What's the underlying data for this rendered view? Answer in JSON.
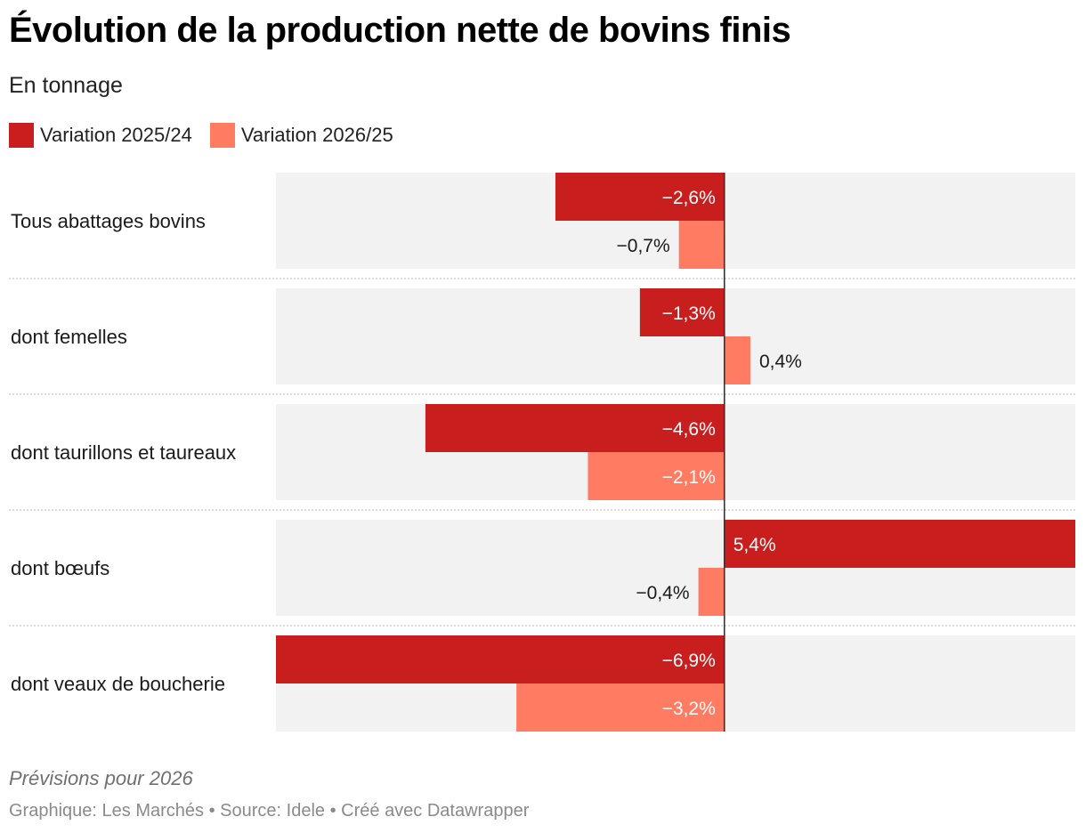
{
  "title": "Évolution de la production nette de bovins finis",
  "subtitle": "En tonnage",
  "notes": "Prévisions pour 2026",
  "credits": {
    "graphic_label": "Graphique:",
    "graphic_value": "Les Marchés",
    "source_label": "Source:",
    "source_value": "Idele",
    "tool": "Créé avec Datawrapper",
    "separator": " • "
  },
  "colors": {
    "series_2025": "#c81e1e",
    "series_2026": "#ff7b62",
    "row_background": "#f2f2f2",
    "zero_line": "#333333"
  },
  "chart_data": {
    "type": "bar",
    "orientation": "horizontal",
    "categories": [
      "Tous abattages bovins",
      "dont femelles",
      "dont taurillons et taureaux",
      "dont bœufs",
      "dont veaux de boucherie"
    ],
    "series": [
      {
        "name": "Variation 2025/24",
        "values": [
          -2.6,
          -1.3,
          -4.6,
          5.4,
          -6.9
        ],
        "labels": [
          "−2,6%",
          "−1,3%",
          "−4,6%",
          "5,4%",
          "−6,9%"
        ]
      },
      {
        "name": "Variation 2026/25",
        "values": [
          -0.7,
          0.4,
          -2.1,
          -0.4,
          -3.2
        ],
        "labels": [
          "−0,7%",
          "0,4%",
          "−2,1%",
          "−0,4%",
          "−3,2%"
        ]
      }
    ],
    "xlim": [
      -6.9,
      5.4
    ],
    "legend_position": "top-left",
    "grid": false
  }
}
